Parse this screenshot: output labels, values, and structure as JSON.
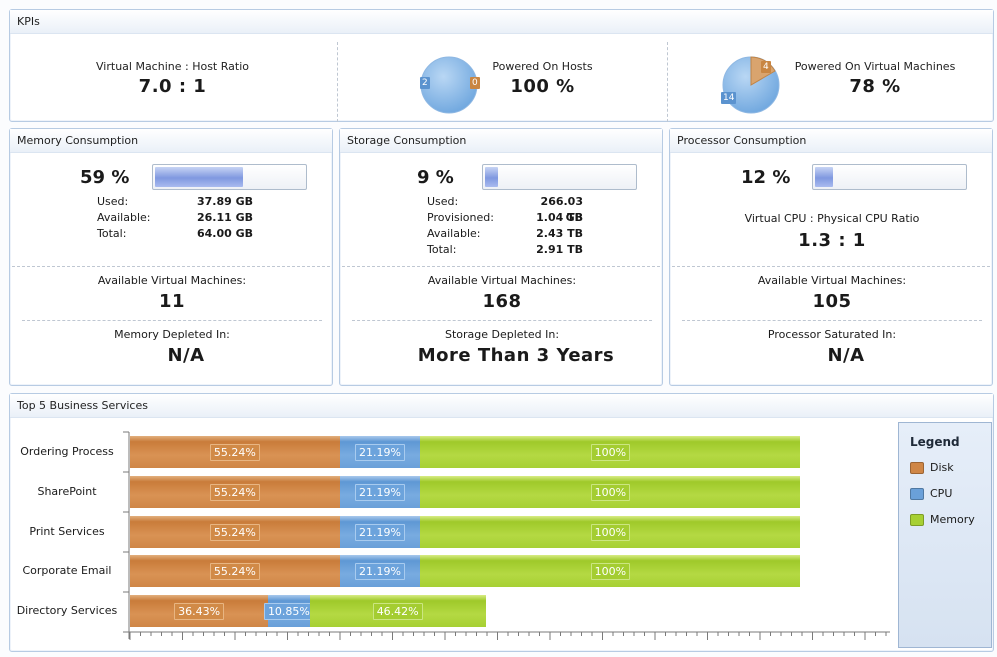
{
  "kpis": {
    "title": "KPIs",
    "vm_host_ratio": {
      "label": "Virtual Machine : Host Ratio",
      "value": "7.0 : 1"
    },
    "powered_on_hosts": {
      "label": "Powered On Hosts",
      "value": "100 %",
      "pie": {
        "on": "2",
        "off": "0"
      }
    },
    "powered_on_vms": {
      "label": "Powered On Virtual Machines",
      "value": "78 %",
      "pie": {
        "on": "14",
        "off": "4"
      }
    }
  },
  "memory": {
    "title": "Memory Consumption",
    "percent": "59 %",
    "fill_fraction": 0.59,
    "stats": [
      {
        "k": "Used:",
        "v": "37.89 GB"
      },
      {
        "k": "Available:",
        "v": "26.11 GB"
      },
      {
        "k": "Total:",
        "v": "64.00 GB"
      }
    ],
    "available_vms_label": "Available Virtual Machines:",
    "available_vms": "11",
    "depleted_label": "Memory Depleted In:",
    "depleted_value": "N/A"
  },
  "storage": {
    "title": "Storage Consumption",
    "percent": "9 %",
    "fill_fraction": 0.09,
    "stats": [
      {
        "k": "Used:",
        "v": "266.03 GB"
      },
      {
        "k": "Provisioned:",
        "v": "1.04 TB"
      },
      {
        "k": "Available:",
        "v": "2.43 TB"
      },
      {
        "k": "Total:",
        "v": "2.91 TB"
      }
    ],
    "available_vms_label": "Available Virtual Machines:",
    "available_vms": "168",
    "depleted_label": "Storage Depleted In:",
    "depleted_value": "More Than 3 Years"
  },
  "processor": {
    "title": "Processor Consumption",
    "percent": "12 %",
    "fill_fraction": 0.12,
    "ratio_label": "Virtual CPU : Physical CPU Ratio",
    "ratio_value": "1.3 : 1",
    "available_vms_label": "Available Virtual Machines:",
    "available_vms": "105",
    "depleted_label": "Processor Saturated In:",
    "depleted_value": "N/A"
  },
  "services": {
    "title": "Top 5 Business Services",
    "legend_title": "Legend",
    "legend": [
      {
        "name": "Disk",
        "color": "#cf8646"
      },
      {
        "name": "CPU",
        "color": "#6aa0d9"
      },
      {
        "name": "Memory",
        "color": "#a7d033"
      }
    ]
  },
  "chart_data": {
    "type": "bar",
    "orientation": "horizontal",
    "stacked": true,
    "categories": [
      "Ordering Process",
      "SharePoint",
      "Print Services",
      "Corporate Email",
      "Directory Services"
    ],
    "series": [
      {
        "name": "Disk",
        "values": [
          55.24,
          55.24,
          55.24,
          55.24,
          36.43
        ],
        "labels": [
          "55.24%",
          "55.24%",
          "55.24%",
          "55.24%",
          "36.43%"
        ]
      },
      {
        "name": "CPU",
        "values": [
          21.19,
          21.19,
          21.19,
          21.19,
          10.85
        ],
        "labels": [
          "21.19%",
          "21.19%",
          "21.19%",
          "21.19%",
          "10.85%"
        ]
      },
      {
        "name": "Memory",
        "values": [
          100,
          100,
          100,
          100,
          46.42
        ],
        "labels": [
          "100%",
          "100%",
          "100%",
          "100%",
          "46.42%"
        ]
      }
    ],
    "xlim": [
      0,
      200
    ],
    "grid": false,
    "legend_position": "right"
  }
}
